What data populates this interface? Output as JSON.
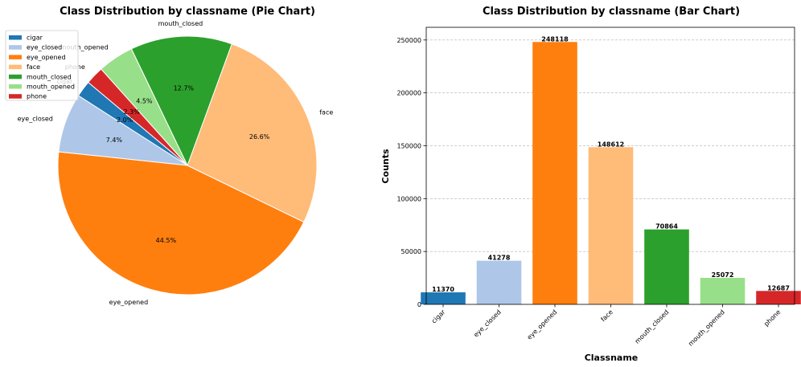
{
  "chart_data": [
    {
      "type": "pie",
      "title": "Class Distribution by classname (Pie Chart)",
      "categories": [
        "cigar",
        "eye_closed",
        "eye_opened",
        "face",
        "mouth_closed",
        "mouth_opened",
        "phone"
      ],
      "values": [
        11370,
        41278,
        248118,
        148612,
        70864,
        25072,
        12687
      ],
      "percent_labels": [
        "2.0%",
        "7.4%",
        "44.5%",
        "26.6%",
        "12.7%",
        "4.5%",
        "2.3%"
      ],
      "colors": [
        "#1f77b4",
        "#aec7e8",
        "#ff7f0e",
        "#ffbb78",
        "#2ca02c",
        "#98df8a",
        "#d62728"
      ],
      "legend": [
        "cigar",
        "eye_closed",
        "eye_opened",
        "face",
        "mouth_closed",
        "mouth_opened",
        "phone"
      ],
      "legend_position": "top-left"
    },
    {
      "type": "bar",
      "title": "Class Distribution by classname (Bar Chart)",
      "categories": [
        "cigar",
        "eye_closed",
        "eye_opened",
        "face",
        "mouth_closed",
        "mouth_opened",
        "phone"
      ],
      "values": [
        11370,
        41278,
        248118,
        148612,
        70864,
        25072,
        12687
      ],
      "value_labels": [
        "11370",
        "41278",
        "248118",
        "148612",
        "70864",
        "25072",
        "12687"
      ],
      "colors": [
        "#1f77b4",
        "#aec7e8",
        "#ff7f0e",
        "#ffbb78",
        "#2ca02c",
        "#98df8a",
        "#d62728"
      ],
      "xlabel": "Classname",
      "ylabel": "Counts",
      "ylim": [
        0,
        262000
      ],
      "yticks": [
        0,
        50000,
        100000,
        150000,
        200000,
        250000
      ],
      "ytick_labels": [
        "0",
        "50000",
        "100000",
        "150000",
        "200000",
        "250000"
      ],
      "grid": "y-dashed"
    }
  ]
}
